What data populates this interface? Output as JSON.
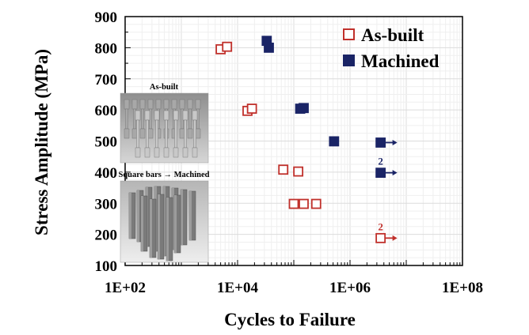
{
  "chart_data": {
    "type": "scatter",
    "xlabel": "Cycles to Failure",
    "ylabel": "Stress Amplitude (MPa)",
    "xscale": "log",
    "xlim": [
      100,
      100000000
    ],
    "ylim": [
      100,
      900
    ],
    "x_ticks": [
      "1E+02",
      "1E+04",
      "1E+06",
      "1E+08"
    ],
    "y_ticks": [
      "100",
      "200",
      "300",
      "400",
      "500",
      "600",
      "700",
      "800",
      "900"
    ],
    "grid": true,
    "legend_position": "top-right",
    "series": [
      {
        "name": "As-built",
        "marker": "open-square",
        "color": "#c0302b",
        "points": [
          {
            "x": 5000,
            "y": 795
          },
          {
            "x": 6500,
            "y": 803
          },
          {
            "x": 15000,
            "y": 597
          },
          {
            "x": 18000,
            "y": 604
          },
          {
            "x": 65000,
            "y": 408
          },
          {
            "x": 120000,
            "y": 402
          },
          {
            "x": 100000,
            "y": 298
          },
          {
            "x": 150000,
            "y": 298
          },
          {
            "x": 250000,
            "y": 298
          },
          {
            "x": 3500000,
            "y": 188,
            "runout": true,
            "count_label": "2"
          }
        ]
      },
      {
        "name": "Machined",
        "marker": "filled-square",
        "color": "#1a2466",
        "points": [
          {
            "x": 33000,
            "y": 822
          },
          {
            "x": 36000,
            "y": 800
          },
          {
            "x": 130000,
            "y": 604
          },
          {
            "x": 150000,
            "y": 606
          },
          {
            "x": 520000,
            "y": 499
          },
          {
            "x": 3500000,
            "y": 495,
            "runout": true
          },
          {
            "x": 3500000,
            "y": 398,
            "runout": true,
            "count_label": "2"
          }
        ]
      }
    ],
    "insets": [
      {
        "title": "As-built"
      },
      {
        "title": "Square bars → Machined"
      }
    ]
  }
}
